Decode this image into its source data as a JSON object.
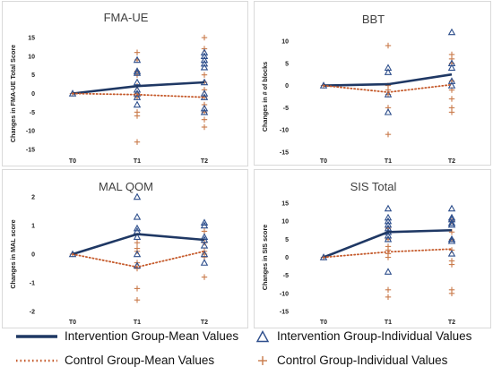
{
  "colors": {
    "intervention": "#1F3864",
    "control": "#C55A2B",
    "marker_blue": "#2E4F8C",
    "marker_orange": "#C97A4A"
  },
  "legend": {
    "intervention_mean": "Intervention Group-Mean Values",
    "intervention_individual": "Intervention Group-Individual Values",
    "control_mean": "Control Group-Mean Values",
    "control_individual": "Control Group-Individual Values"
  },
  "chart_data": [
    {
      "type": "line",
      "title": "FMA-UE",
      "ylabel": "Changes in FMA-UE Total Score",
      "categories": [
        "T0",
        "T1",
        "T2"
      ],
      "ylim": [
        -15,
        15
      ],
      "yticks": [
        -15,
        -10,
        -5,
        0,
        5,
        10,
        15
      ],
      "series": [
        {
          "name": "Intervention Group-Mean Values",
          "style": "solid",
          "values": [
            0,
            2,
            3
          ]
        },
        {
          "name": "Control Group-Mean Values",
          "style": "dotted",
          "values": [
            0,
            -0.3,
            -1
          ]
        }
      ],
      "individual": {
        "Intervention Group-Individual Values": [
          [
            0,
            0
          ],
          [
            1,
            9
          ],
          [
            1,
            6
          ],
          [
            1,
            5.5
          ],
          [
            1,
            3
          ],
          [
            1,
            1
          ],
          [
            1,
            0
          ],
          [
            1,
            -1
          ],
          [
            1,
            -3
          ],
          [
            2,
            11
          ],
          [
            2,
            10
          ],
          [
            2,
            9
          ],
          [
            2,
            8
          ],
          [
            2,
            7
          ],
          [
            2,
            3
          ],
          [
            2,
            0
          ],
          [
            2,
            -1
          ],
          [
            2,
            -4
          ],
          [
            2,
            -5
          ]
        ],
        "Control Group-Individual Values": [
          [
            0,
            0
          ],
          [
            1,
            11
          ],
          [
            1,
            9
          ],
          [
            1,
            6
          ],
          [
            1,
            5
          ],
          [
            1,
            2
          ],
          [
            1,
            0
          ],
          [
            1,
            -1
          ],
          [
            1,
            -5
          ],
          [
            1,
            -6
          ],
          [
            1,
            -13
          ],
          [
            2,
            15
          ],
          [
            2,
            12
          ],
          [
            2,
            5
          ],
          [
            2,
            3
          ],
          [
            2,
            1
          ],
          [
            2,
            -1
          ],
          [
            2,
            -3
          ],
          [
            2,
            -5
          ],
          [
            2,
            -7
          ],
          [
            2,
            -9
          ]
        ]
      }
    },
    {
      "type": "line",
      "title": "BBT",
      "ylabel": "Changes in # of blocks",
      "categories": [
        "T0",
        "T1",
        "T2"
      ],
      "ylim": [
        -15,
        10
      ],
      "yticks": [
        -15,
        -10,
        -5,
        0,
        5,
        10
      ],
      "series": [
        {
          "name": "Intervention Group-Mean Values",
          "style": "solid",
          "values": [
            0,
            0.3,
            2.5
          ]
        },
        {
          "name": "Control Group-Mean Values",
          "style": "dotted",
          "values": [
            0,
            -1.5,
            0.2
          ]
        }
      ],
      "individual": {
        "Intervention Group-Individual Values": [
          [
            0,
            0
          ],
          [
            1,
            4
          ],
          [
            1,
            3
          ],
          [
            1,
            -2
          ],
          [
            1,
            -6
          ],
          [
            2,
            12
          ],
          [
            2,
            5
          ],
          [
            2,
            4
          ],
          [
            2,
            1
          ],
          [
            2,
            0
          ]
        ],
        "Control Group-Individual Values": [
          [
            0,
            0
          ],
          [
            1,
            9
          ],
          [
            1,
            0
          ],
          [
            1,
            -1
          ],
          [
            1,
            -2
          ],
          [
            1,
            -5
          ],
          [
            1,
            -11
          ],
          [
            2,
            7
          ],
          [
            2,
            6
          ],
          [
            2,
            5
          ],
          [
            2,
            1
          ],
          [
            2,
            -1
          ],
          [
            2,
            -3
          ],
          [
            2,
            -5
          ],
          [
            2,
            -6
          ]
        ]
      }
    },
    {
      "type": "line",
      "title": "MAL QOM",
      "ylabel": "Changes in MAL score",
      "categories": [
        "T0",
        "T1",
        "T2"
      ],
      "ylim": [
        -2,
        2
      ],
      "yticks": [
        -2,
        -1,
        0,
        1,
        2
      ],
      "series": [
        {
          "name": "Intervention Group-Mean Values",
          "style": "solid",
          "values": [
            0,
            0.7,
            0.5
          ]
        },
        {
          "name": "Control Group-Mean Values",
          "style": "dotted",
          "values": [
            0,
            -0.45,
            0.1
          ]
        }
      ],
      "individual": {
        "Intervention Group-Individual Values": [
          [
            0,
            0
          ],
          [
            1,
            2
          ],
          [
            1,
            1.3
          ],
          [
            1,
            0.9
          ],
          [
            1,
            0.8
          ],
          [
            1,
            0.6
          ],
          [
            1,
            0
          ],
          [
            1,
            -0.4
          ],
          [
            2,
            1.1
          ],
          [
            2,
            1.0
          ],
          [
            2,
            0.6
          ],
          [
            2,
            0.5
          ],
          [
            2,
            0.3
          ],
          [
            2,
            0
          ],
          [
            2,
            -0.3
          ]
        ],
        "Control Group-Individual Values": [
          [
            0,
            0
          ],
          [
            1,
            0.4
          ],
          [
            1,
            0.2
          ],
          [
            1,
            0.1
          ],
          [
            1,
            -0.3
          ],
          [
            1,
            -0.5
          ],
          [
            1,
            -1.2
          ],
          [
            1,
            -1.6
          ],
          [
            2,
            0.8
          ],
          [
            2,
            0.4
          ],
          [
            2,
            0.1
          ],
          [
            2,
            0
          ],
          [
            2,
            -0.1
          ],
          [
            2,
            -0.8
          ]
        ]
      }
    },
    {
      "type": "line",
      "title": "SIS Total",
      "ylabel": "Changes in SIS score",
      "categories": [
        "T0",
        "T1",
        "T2"
      ],
      "ylim": [
        -15,
        15
      ],
      "yticks": [
        -15,
        -10,
        -5,
        0,
        5,
        10,
        15
      ],
      "series": [
        {
          "name": "Intervention Group-Mean Values",
          "style": "solid",
          "values": [
            0,
            7,
            7.5
          ]
        },
        {
          "name": "Control Group-Mean Values",
          "style": "dotted",
          "values": [
            0,
            1.5,
            2.3
          ]
        }
      ],
      "individual": {
        "Intervention Group-Individual Values": [
          [
            0,
            0
          ],
          [
            1,
            13.5
          ],
          [
            1,
            11
          ],
          [
            1,
            10
          ],
          [
            1,
            9
          ],
          [
            1,
            8
          ],
          [
            1,
            7
          ],
          [
            1,
            6
          ],
          [
            1,
            5
          ],
          [
            1,
            -4
          ],
          [
            2,
            13.5
          ],
          [
            2,
            11
          ],
          [
            2,
            10.5
          ],
          [
            2,
            9.5
          ],
          [
            2,
            9
          ],
          [
            2,
            5
          ],
          [
            2,
            4.5
          ],
          [
            2,
            1
          ]
        ],
        "Control Group-Individual Values": [
          [
            0,
            0
          ],
          [
            1,
            8
          ],
          [
            1,
            5
          ],
          [
            1,
            3
          ],
          [
            1,
            2
          ],
          [
            1,
            1
          ],
          [
            1,
            0
          ],
          [
            1,
            -9
          ],
          [
            1,
            -11
          ],
          [
            2,
            10
          ],
          [
            2,
            7
          ],
          [
            2,
            5
          ],
          [
            2,
            2
          ],
          [
            2,
            -1
          ],
          [
            2,
            -2
          ],
          [
            2,
            -9
          ],
          [
            2,
            -10
          ]
        ]
      }
    }
  ]
}
